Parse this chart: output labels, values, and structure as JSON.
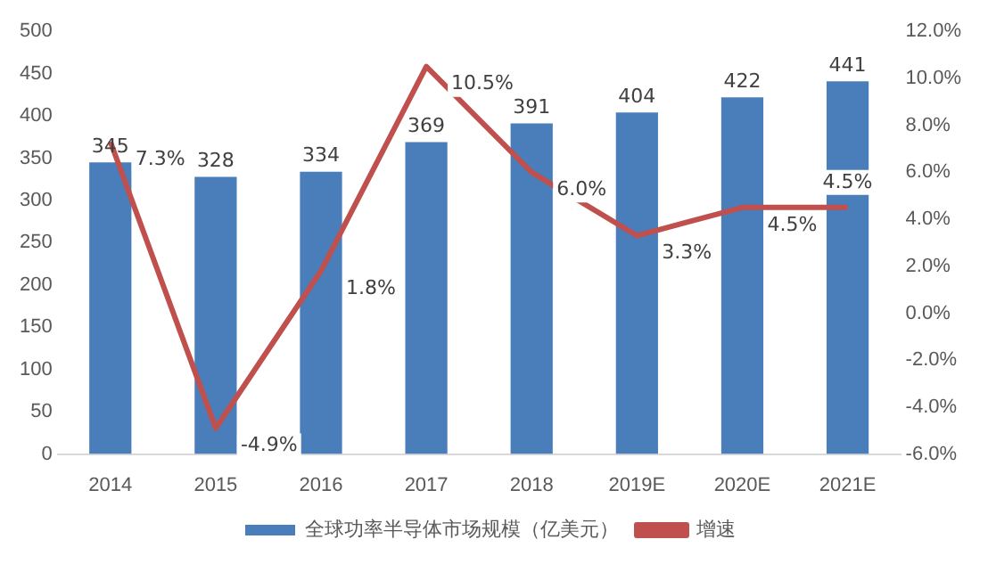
{
  "chart_data": {
    "type": "bar",
    "categories": [
      "2014",
      "2015",
      "2016",
      "2017",
      "2018",
      "2019E",
      "2020E",
      "2021E"
    ],
    "series": [
      {
        "name": "全球功率半导体市场规模（亿美元）",
        "color": "#4a7ebb",
        "values": [
          345,
          328,
          334,
          369,
          391,
          404,
          422,
          441
        ]
      },
      {
        "name": "增速",
        "type": "line",
        "axis": "y2",
        "color": "#c0504d",
        "values": [
          7.3,
          -4.9,
          1.8,
          10.5,
          6.0,
          3.3,
          4.5,
          4.5
        ],
        "value_labels": [
          "7.3%",
          "-4.9%",
          "1.8%",
          "10.5%",
          "6.0%",
          "3.3%",
          "4.5%",
          "4.5%"
        ]
      }
    ],
    "ylim": [
      0,
      500
    ],
    "yticks": [
      0,
      50,
      100,
      150,
      200,
      250,
      300,
      350,
      400,
      450,
      500
    ],
    "y2lim": [
      -6,
      12
    ],
    "y2ticks": [
      {
        "value": -6,
        "label": "-6.0%"
      },
      {
        "value": -4,
        "label": "-4.0%"
      },
      {
        "value": -2,
        "label": "-2.0%"
      },
      {
        "value": 0,
        "label": "0.0%"
      },
      {
        "value": 2,
        "label": "2.0%"
      },
      {
        "value": 4,
        "label": "4.0%"
      },
      {
        "value": 6,
        "label": "6.0%"
      },
      {
        "value": 8,
        "label": "8.0%"
      },
      {
        "value": 10,
        "label": "10.0%"
      },
      {
        "value": 12,
        "label": "12.0%"
      }
    ],
    "data_labels": true,
    "grid": false,
    "legend": "bottom",
    "marker": "none",
    "line_style": "solid"
  }
}
